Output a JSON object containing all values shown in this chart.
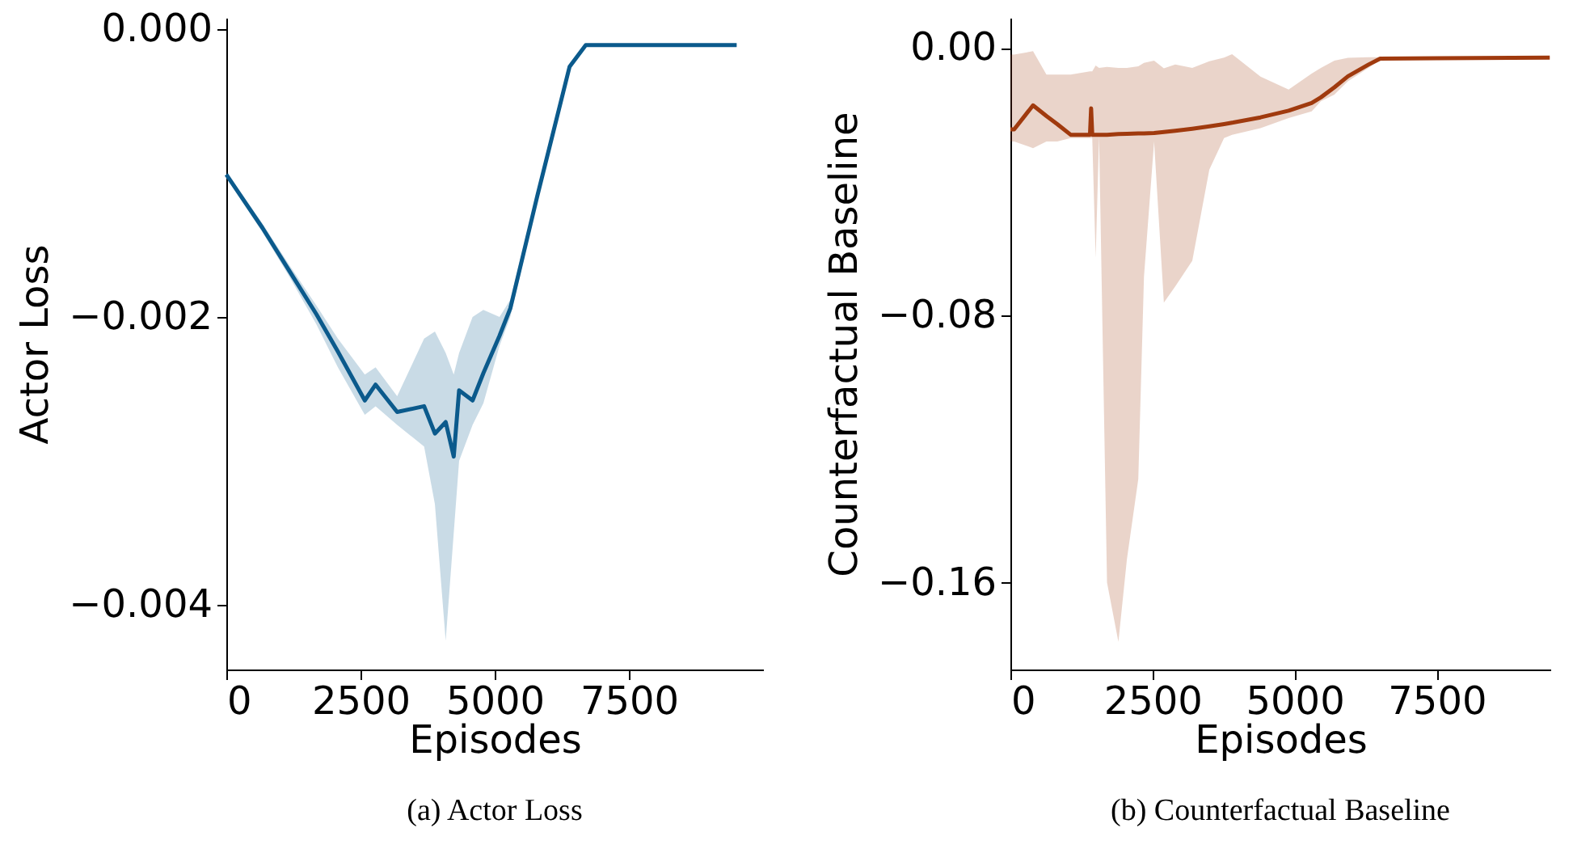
{
  "chart_data": [
    {
      "type": "line",
      "xlabel": "Episodes",
      "ylabel": "Actor Loss",
      "annotations": [
        "(a) Actor Loss"
      ],
      "xlim": [
        0,
        10000
      ],
      "ylim": [
        -0.00445,
        8e-05
      ],
      "xticks": [
        0,
        2500,
        5000,
        7500
      ],
      "yticks": [
        {
          "value": 0,
          "label": "0.000"
        },
        {
          "value": -0.002,
          "label": "−0.002"
        },
        {
          "value": -0.004,
          "label": "−0.004"
        }
      ],
      "grid": false,
      "series": [
        {
          "color": "#0b5a8c",
          "x": [
            0,
            672,
            1175,
            1677,
            2078,
            2580,
            2781,
            3183,
            3685,
            3886,
            4087,
            4237,
            4337,
            4588,
            4789,
            5090,
            5291,
            5793,
            6094,
            6395,
            6697,
            9508
          ],
          "values": [
            -0.00101,
            -0.00138,
            -0.00168,
            -0.00198,
            -0.00224,
            -0.00258,
            -0.00247,
            -0.00266,
            -0.00262,
            -0.00281,
            -0.00273,
            -0.00297,
            -0.00251,
            -0.00258,
            -0.00239,
            -0.00213,
            -0.00194,
            -0.00116,
            -0.00071,
            -0.00026,
            -0.00011,
            -0.00011
          ],
          "lower": [
            -0.00103,
            -0.00141,
            -0.00172,
            -0.00205,
            -0.00235,
            -0.00268,
            -0.00262,
            -0.00275,
            -0.0029,
            -0.0033,
            -0.00425,
            -0.0035,
            -0.003,
            -0.00275,
            -0.0026,
            -0.0022,
            -0.002,
            -0.0012,
            -0.00073,
            -0.00028,
            -0.00012,
            -0.00012
          ],
          "upper": [
            -0.00099,
            -0.00135,
            -0.00164,
            -0.00192,
            -0.00215,
            -0.0024,
            -0.00235,
            -0.00255,
            -0.00215,
            -0.0021,
            -0.00225,
            -0.0024,
            -0.00225,
            -0.002,
            -0.00195,
            -0.002,
            -0.00188,
            -0.00112,
            -0.00069,
            -0.00024,
            -0.0001,
            -0.0001
          ]
        }
      ]
    },
    {
      "type": "line",
      "xlabel": "Episodes",
      "ylabel": "Counterfactual Baseline",
      "annotations": [
        "(b) Counterfactual Baseline"
      ],
      "xlim": [
        0,
        9500
      ],
      "ylim": [
        -0.186,
        0.009
      ],
      "xticks": [
        0,
        2500,
        5000,
        7500
      ],
      "yticks": [
        {
          "value": 0,
          "label": "0.00"
        },
        {
          "value": -0.08,
          "label": "−0.08"
        },
        {
          "value": -0.16,
          "label": "−0.16"
        }
      ],
      "grid": false,
      "series": [
        {
          "color": "#a03a0e",
          "x": [
            0,
            66,
            398,
            634,
            824,
            1060,
            1400,
            1420,
            1440,
            1500,
            1560,
            1700,
            1900,
            2050,
            2250,
            2350,
            2528,
            2700,
            2900,
            3200,
            3500,
            3759,
            3900,
            4400,
            4895,
            5300,
            5463,
            5700,
            5938,
            6300,
            6506,
            7500,
            9489
          ],
          "values": [
            -0.0244,
            -0.0244,
            -0.0172,
            -0.0204,
            -0.0228,
            -0.026,
            -0.026,
            -0.0181,
            -0.026,
            -0.026,
            -0.026,
            -0.026,
            -0.0258,
            -0.0257,
            -0.0256,
            -0.0256,
            -0.0255,
            -0.0252,
            -0.0248,
            -0.0242,
            -0.0235,
            -0.0228,
            -0.0224,
            -0.0208,
            -0.0188,
            -0.0165,
            -0.0148,
            -0.0118,
            -0.0085,
            -0.005,
            -0.0032,
            -0.0031,
            -0.0029
          ],
          "lower": [
            -0.028,
            -0.028,
            -0.03,
            -0.028,
            -0.028,
            -0.027,
            -0.027,
            -0.027,
            -0.027,
            -0.0628,
            -0.0265,
            -0.16,
            -0.1777,
            -0.153,
            -0.129,
            -0.0685,
            -0.028,
            -0.0762,
            -0.0714,
            -0.0637,
            -0.0364,
            -0.027,
            -0.026,
            -0.024,
            -0.021,
            -0.019,
            -0.016,
            -0.014,
            -0.01,
            -0.006,
            -0.0036,
            -0.0034,
            -0.0032
          ],
          "upper": [
            -0.002,
            -0.002,
            -0.001,
            -0.008,
            -0.008,
            -0.008,
            -0.007,
            -0.007,
            -0.007,
            -0.0053,
            -0.006,
            -0.0057,
            -0.006,
            -0.006,
            -0.0055,
            -0.0045,
            -0.0038,
            -0.0061,
            -0.005,
            -0.006,
            -0.004,
            -0.0029,
            -0.0019,
            -0.0086,
            -0.0125,
            -0.0077,
            -0.006,
            -0.0038,
            -0.003,
            -0.0028,
            -0.0028,
            -0.0028,
            -0.0026
          ]
        }
      ]
    }
  ]
}
